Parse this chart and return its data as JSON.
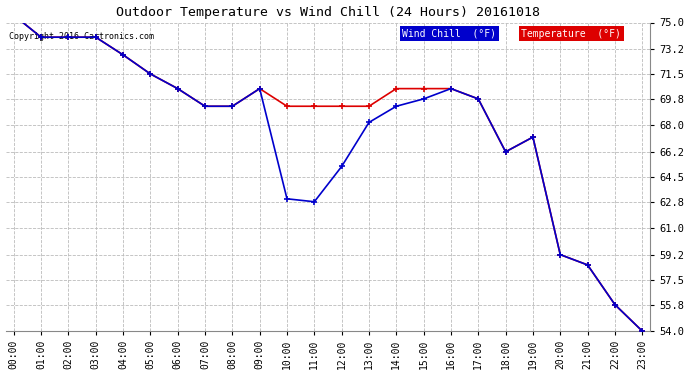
{
  "title": "Outdoor Temperature vs Wind Chill (24 Hours) 20161018",
  "copyright": "Copyright 2016 Cartronics.com",
  "x_labels": [
    "00:00",
    "01:00",
    "02:00",
    "03:00",
    "04:00",
    "05:00",
    "06:00",
    "07:00",
    "08:00",
    "09:00",
    "10:00",
    "11:00",
    "12:00",
    "13:00",
    "14:00",
    "15:00",
    "16:00",
    "17:00",
    "18:00",
    "19:00",
    "20:00",
    "21:00",
    "22:00",
    "23:00"
  ],
  "temperature": [
    75.5,
    74.0,
    74.0,
    74.0,
    72.8,
    71.5,
    70.5,
    69.3,
    69.3,
    70.5,
    69.3,
    69.3,
    69.3,
    69.3,
    70.5,
    70.5,
    70.5,
    69.8,
    66.2,
    67.2,
    59.2,
    58.5,
    55.8,
    54.0
  ],
  "wind_chill": [
    75.5,
    74.0,
    74.0,
    74.0,
    72.8,
    71.5,
    70.5,
    69.3,
    69.3,
    70.5,
    63.0,
    62.8,
    65.2,
    68.2,
    69.3,
    69.8,
    70.5,
    69.8,
    66.2,
    67.2,
    59.2,
    58.5,
    55.8,
    54.0
  ],
  "temp_color": "#dd0000",
  "wind_chill_color": "#0000cc",
  "ylim_min": 54.0,
  "ylim_max": 75.0,
  "yticks": [
    54.0,
    55.8,
    57.5,
    59.2,
    61.0,
    62.8,
    64.5,
    66.2,
    68.0,
    69.8,
    71.5,
    73.2,
    75.0
  ],
  "background_color": "#ffffff",
  "grid_color": "#bbbbbb",
  "legend_wind_chill_bg": "#0000cc",
  "legend_temp_bg": "#dd0000",
  "legend_wind_chill_text": "Wind Chill  (°F)",
  "legend_temp_text": "Temperature  (°F)"
}
